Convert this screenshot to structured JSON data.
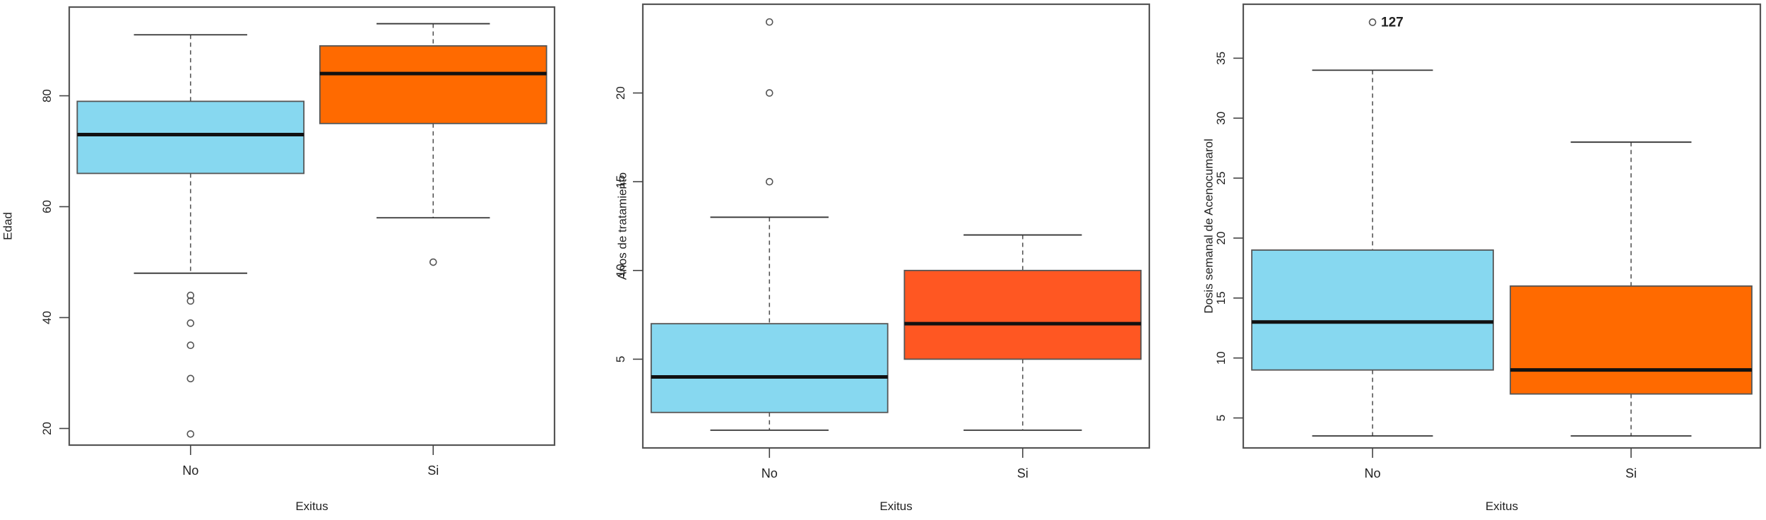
{
  "chart_data": [
    {
      "type": "boxplot",
      "xlabel": "Exitus",
      "ylabel": "Edad",
      "ylim": [
        17,
        96
      ],
      "yticks": [
        20,
        40,
        60,
        80
      ],
      "grid": false,
      "groups": [
        {
          "category": "No",
          "color": "#87d8f0",
          "whisker_low": 48,
          "q1": 66,
          "median": 73,
          "q3": 79,
          "whisker_high": 91,
          "outliers": [
            44,
            43,
            39,
            35,
            29,
            19
          ]
        },
        {
          "category": "Si",
          "color": "#ff6a00",
          "whisker_low": 58,
          "q1": 75,
          "median": 84,
          "q3": 89,
          "whisker_high": 93,
          "outliers": [
            50
          ]
        }
      ]
    },
    {
      "type": "boxplot",
      "xlabel": "Exitus",
      "ylabel": "Anos de tratamiento",
      "ylim": [
        0,
        25
      ],
      "yticks": [
        5,
        10,
        15,
        20
      ],
      "grid": false,
      "groups": [
        {
          "category": "No",
          "color": "#87d8f0",
          "whisker_low": 1,
          "q1": 2,
          "median": 4,
          "q3": 7,
          "whisker_high": 13,
          "outliers": [
            15,
            20,
            24
          ]
        },
        {
          "category": "Si",
          "color": "#ff5722",
          "whisker_low": 1,
          "q1": 5,
          "median": 7,
          "q3": 10,
          "whisker_high": 12,
          "outliers": []
        }
      ]
    },
    {
      "type": "boxplot",
      "xlabel": "Exitus",
      "ylabel": "Dosis semanal de Acenocumarol",
      "ylim": [
        2.5,
        39.5
      ],
      "yticks": [
        5,
        10,
        15,
        20,
        25,
        30,
        35
      ],
      "grid": false,
      "groups": [
        {
          "category": "No",
          "color": "#87d8f0",
          "whisker_low": 3.5,
          "q1": 9,
          "median": 13,
          "q3": 19,
          "whisker_high": 34,
          "outliers": [
            38
          ],
          "outlier_labels": [
            "127"
          ]
        },
        {
          "category": "Si",
          "color": "#ff6a00",
          "whisker_low": 3.5,
          "q1": 7,
          "median": 9,
          "q3": 16,
          "whisker_high": 28,
          "outliers": []
        }
      ]
    }
  ]
}
